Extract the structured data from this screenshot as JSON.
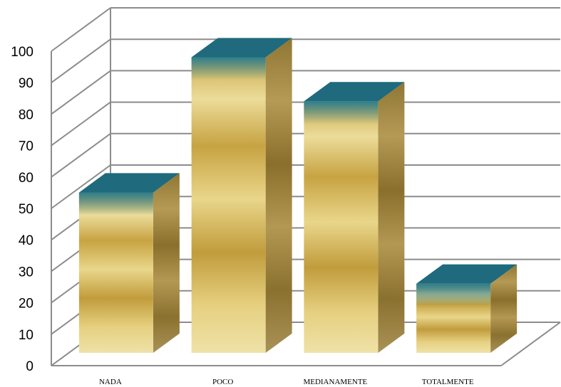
{
  "chart_data": {
    "type": "bar",
    "style": "3d-column",
    "categories": [
      "NADA",
      "POCO",
      "MEDIANAMENTE",
      "TOTALMENTE"
    ],
    "values": [
      51,
      94,
      80,
      22
    ],
    "ylim": [
      0,
      100
    ],
    "yticks": [
      0,
      10,
      20,
      30,
      40,
      50,
      60,
      70,
      80,
      90,
      100
    ],
    "grid": true,
    "legend": "none",
    "colors": {
      "bar_gold": "#d9bb62",
      "bar_gold_dark": "#b9963a",
      "bar_gold_light": "#ecdc9a",
      "bar_top": "#1f6a7c",
      "bar_top_light": "#3b8fa0",
      "grid": "#8c8c8c"
    }
  }
}
